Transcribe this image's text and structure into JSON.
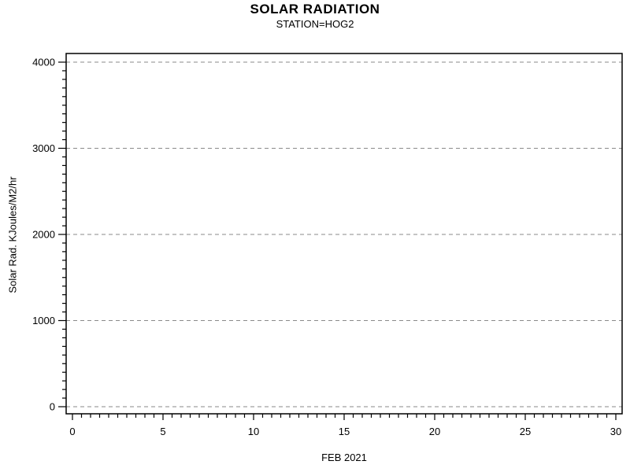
{
  "header": {
    "title": "SOLAR RADIATION",
    "subtitle": "STATION=HOG2"
  },
  "chart_data": {
    "type": "line",
    "title": "SOLAR RADIATION",
    "subtitle": "STATION=HOG2",
    "xlabel": "FEB 2021",
    "ylabel": "Solar Rad. KJoules/M2/hr",
    "xlim": [
      0,
      30
    ],
    "ylim": [
      0,
      4000
    ],
    "x_major_ticks": [
      0,
      5,
      10,
      15,
      20,
      25,
      30
    ],
    "x_minor_step": 0.5,
    "y_major_ticks": [
      0,
      1000,
      2000,
      3000,
      4000
    ],
    "y_minor_step": 100,
    "grid": {
      "horizontal": true,
      "vertical": false,
      "style": "dashed",
      "color": "#8a8a8a"
    },
    "frame": true,
    "axis_color": "#000000",
    "background_color": "#ffffff",
    "legend": null,
    "series": []
  }
}
